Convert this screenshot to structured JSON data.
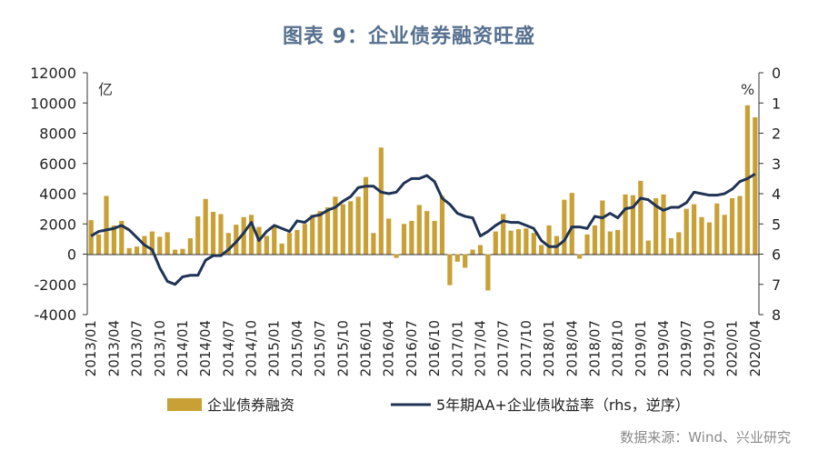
{
  "title": "图表 9：企业债券融资旺盛",
  "source": "数据来源：Wind、兴业研究",
  "chart_data": {
    "type": "bar+line",
    "left_unit": "亿",
    "right_unit": "%",
    "ylim_left": [
      -4000,
      12000
    ],
    "yticks_left": [
      "12000",
      "10000",
      "8000",
      "6000",
      "4000",
      "2000",
      "0",
      "-2000",
      "-4000"
    ],
    "ylim_right": [
      8,
      0
    ],
    "yticks_right": [
      "0",
      "1",
      "2",
      "3",
      "4",
      "5",
      "6",
      "7",
      "8"
    ],
    "xticks": [
      "2013/01",
      "2013/04",
      "2013/07",
      "2013/10",
      "2014/01",
      "2014/04",
      "2014/07",
      "2014/10",
      "2015/01",
      "2015/04",
      "2015/07",
      "2015/10",
      "2016/01",
      "2016/04",
      "2016/07",
      "2016/10",
      "2017/01",
      "2017/04",
      "2017/07",
      "2017/10",
      "2018/01",
      "2018/04",
      "2018/07",
      "2018/10",
      "2019/01",
      "2019/04",
      "2019/07",
      "2019/10",
      "2020/01",
      "2020/04"
    ],
    "months": [
      "2013/01",
      "2013/02",
      "2013/03",
      "2013/04",
      "2013/05",
      "2013/06",
      "2013/07",
      "2013/08",
      "2013/09",
      "2013/10",
      "2013/11",
      "2013/12",
      "2014/01",
      "2014/02",
      "2014/03",
      "2014/04",
      "2014/05",
      "2014/06",
      "2014/07",
      "2014/08",
      "2014/09",
      "2014/10",
      "2014/11",
      "2014/12",
      "2015/01",
      "2015/02",
      "2015/03",
      "2015/04",
      "2015/05",
      "2015/06",
      "2015/07",
      "2015/08",
      "2015/09",
      "2015/10",
      "2015/11",
      "2015/12",
      "2016/01",
      "2016/02",
      "2016/03",
      "2016/04",
      "2016/05",
      "2016/06",
      "2016/07",
      "2016/08",
      "2016/09",
      "2016/10",
      "2016/11",
      "2016/12",
      "2017/01",
      "2017/02",
      "2017/03",
      "2017/04",
      "2017/05",
      "2017/06",
      "2017/07",
      "2017/08",
      "2017/09",
      "2017/10",
      "2017/11",
      "2017/12",
      "2018/01",
      "2018/02",
      "2018/03",
      "2018/04",
      "2018/05",
      "2018/06",
      "2018/07",
      "2018/08",
      "2018/09",
      "2018/10",
      "2018/11",
      "2018/12",
      "2019/01",
      "2019/02",
      "2019/03",
      "2019/04",
      "2019/05",
      "2019/06",
      "2019/07",
      "2019/08",
      "2019/09",
      "2019/10",
      "2019/11",
      "2019/12",
      "2020/01",
      "2020/02",
      "2020/03",
      "2020/04"
    ],
    "series": [
      {
        "name": "企业债券融资",
        "type": "bar",
        "axis": "left",
        "color": "#c8a035",
        "values": [
          2250,
          1300,
          3850,
          1900,
          2200,
          400,
          500,
          1200,
          1500,
          1150,
          1450,
          300,
          350,
          1050,
          2500,
          3650,
          2800,
          2650,
          1400,
          1950,
          2450,
          2600,
          1800,
          1200,
          1800,
          700,
          1400,
          1600,
          2000,
          2600,
          2850,
          3100,
          3800,
          3300,
          3500,
          3800,
          5100,
          1400,
          7050,
          2350,
          -250,
          2000,
          2200,
          3250,
          2850,
          2200,
          3850,
          -2050,
          -500,
          -900,
          300,
          600,
          -2400,
          1500,
          2650,
          1550,
          1650,
          1700,
          1400,
          600,
          1900,
          1200,
          3600,
          4050,
          -300,
          1300,
          1900,
          3550,
          1500,
          1600,
          3950,
          3900,
          4850,
          900,
          3700,
          3950,
          1050,
          1450,
          3000,
          3300,
          2450,
          2100,
          3350,
          2600,
          3700,
          3850,
          9850,
          9050
        ]
      },
      {
        "name": "5年期AA+企业债收益率（rhs，逆序）",
        "type": "line",
        "axis": "right",
        "color": "#1f3355",
        "values": [
          5.4,
          5.25,
          5.2,
          5.15,
          5.05,
          5.2,
          5.45,
          5.7,
          5.85,
          6.45,
          6.9,
          7.0,
          6.75,
          6.7,
          6.7,
          6.2,
          6.05,
          6.05,
          5.85,
          5.6,
          5.3,
          4.95,
          5.55,
          5.25,
          5.05,
          5.15,
          5.25,
          4.9,
          4.95,
          4.75,
          4.7,
          4.55,
          4.45,
          4.25,
          4.1,
          3.8,
          3.75,
          3.75,
          3.95,
          4.0,
          3.95,
          3.65,
          3.5,
          3.5,
          3.4,
          3.6,
          4.15,
          4.35,
          4.65,
          4.75,
          4.8,
          5.4,
          5.25,
          5.05,
          4.9,
          4.95,
          4.95,
          5.05,
          5.15,
          5.55,
          5.75,
          5.75,
          5.55,
          5.1,
          5.1,
          5.15,
          4.75,
          4.8,
          4.65,
          4.8,
          4.5,
          4.45,
          4.15,
          4.2,
          4.4,
          4.55,
          4.45,
          4.45,
          4.3,
          3.95,
          4.0,
          4.05,
          4.05,
          4.0,
          3.85,
          3.6,
          3.5,
          3.35
        ]
      }
    ],
    "legend_position": "bottom"
  }
}
